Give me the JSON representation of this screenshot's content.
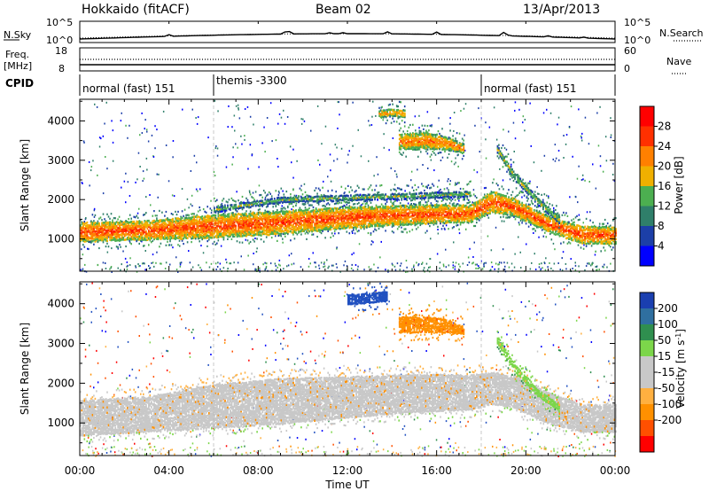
{
  "header": {
    "station": "Hokkaido (fitACF)",
    "beam": "Beam 02",
    "date": "13/Apr/2013"
  },
  "strip_labels": {
    "nsky": "N.Sky",
    "nsearch": "N.Search",
    "freq": "Freq.",
    "freq_unit": "[MHz]",
    "nave": "Nave",
    "cpid": "CPID",
    "nsky_ticks": [
      "10^5",
      "10^0"
    ],
    "nsearch_ticks": [
      "10^5",
      "10^0"
    ],
    "freq_ticks": [
      "18",
      "8"
    ],
    "nave_ticks": [
      "60",
      "0"
    ]
  },
  "cpid_segments": [
    {
      "start_hour": 0,
      "label": "normal (fast) 151"
    },
    {
      "start_hour": 6,
      "label": "themis -3300"
    },
    {
      "start_hour": 18,
      "label": "normal (fast) 151"
    }
  ],
  "colors": {
    "power_scale": [
      "#0000ff",
      "#1c3fa8",
      "#2f7f6a",
      "#4caf50",
      "#f0b000",
      "#ff8000",
      "#ff3000",
      "#ff0000"
    ],
    "velocity_scale": [
      "#ff0000",
      "#ff5000",
      "#ff9000",
      "#ffb040",
      "#c8c8c8",
      "#c8c8c8",
      "#7cd64a",
      "#2f8f4f",
      "#2050c0",
      "#0000ff"
    ],
    "ground_scatter": "#c4c4c4"
  },
  "chart_data": [
    {
      "type": "heatmap",
      "panel": "power",
      "ylabel": "Slant Range [km]",
      "xlim": [
        0,
        24
      ],
      "ylim": [
        180,
        4550
      ],
      "yticks": [
        1000,
        2000,
        3000,
        4000
      ],
      "colorbar": {
        "label": "Power [dB]",
        "ticks": [
          4,
          8,
          12,
          16,
          20,
          24,
          28
        ],
        "range": [
          0,
          32
        ]
      },
      "features": [
        {
          "name": "main-echo-band",
          "hours": [
            0,
            3,
            6,
            9,
            12,
            15,
            17.5,
            18.5,
            19.5,
            21,
            22.5,
            24
          ],
          "range_low": [
            950,
            1000,
            1050,
            1150,
            1300,
            1400,
            1450,
            1700,
            1600,
            1200,
            900,
            900
          ],
          "range_high": [
            1450,
            1500,
            1650,
            1750,
            1850,
            1900,
            1900,
            2250,
            2050,
            1600,
            1350,
            1350
          ],
          "power_db": 26
        },
        {
          "name": "upper-band",
          "hours": [
            6,
            9,
            12,
            15,
            17.5
          ],
          "range_low": [
            1700,
            1950,
            2000,
            2050,
            2100
          ],
          "range_high": [
            1850,
            2100,
            2150,
            2200,
            2250
          ],
          "power_db": 16
        },
        {
          "name": "high-range-patch",
          "hours": [
            14.3,
            15.5,
            16.3,
            17.2
          ],
          "range_low": [
            3300,
            3300,
            3300,
            3200
          ],
          "range_high": [
            3700,
            3750,
            3650,
            3450
          ],
          "power_db": 24
        },
        {
          "name": "top-patch",
          "hours": [
            13.4,
            14.0,
            14.6
          ],
          "range_low": [
            4100,
            4150,
            4100
          ],
          "range_high": [
            4300,
            4350,
            4300
          ],
          "power_db": 22
        },
        {
          "name": "descending-streak",
          "hours": [
            18.7,
            19.5,
            20.5,
            21.5
          ],
          "range_low": [
            3200,
            2500,
            1900,
            1400
          ],
          "range_high": [
            3400,
            2700,
            2100,
            1600
          ],
          "power_db": 18
        }
      ]
    },
    {
      "type": "heatmap",
      "panel": "velocity",
      "xlabel": "Time UT",
      "ylabel": "Slant Range [km]",
      "xlim": [
        0,
        24
      ],
      "ylim": [
        180,
        4550
      ],
      "xticks": [
        "00:00",
        "04:00",
        "08:00",
        "12:00",
        "16:00",
        "20:00",
        "00:00"
      ],
      "yticks": [
        1000,
        2000,
        3000,
        4000
      ],
      "colorbar": {
        "label": "Velocity [m s^-1]",
        "ticks": [
          200,
          100,
          50,
          15,
          -15,
          -50,
          -100,
          -200
        ]
      },
      "features": [
        {
          "name": "ground-scatter-band",
          "hours": [
            0,
            3,
            6,
            9,
            12,
            15,
            17.5,
            18.5,
            19.5,
            21,
            22.5,
            24
          ],
          "range_low": [
            700,
            800,
            900,
            1000,
            1150,
            1300,
            1350,
            1500,
            1400,
            1000,
            800,
            800
          ],
          "range_high": [
            1600,
            1700,
            2000,
            2150,
            2200,
            2250,
            2250,
            2300,
            2200,
            1800,
            1500,
            1500
          ],
          "velocity": 0
        },
        {
          "name": "negative-patch",
          "hours": [
            14.3,
            15.5,
            16.3,
            17.2
          ],
          "range_low": [
            3300,
            3300,
            3300,
            3250
          ],
          "range_high": [
            3700,
            3700,
            3650,
            3450
          ],
          "velocity": -60
        },
        {
          "name": "positive-streak",
          "hours": [
            18.7,
            19.5,
            20.5,
            21.5
          ],
          "range_low": [
            3000,
            2300,
            1700,
            1300
          ],
          "range_high": [
            3200,
            2500,
            1900,
            1500
          ],
          "velocity": 40
        },
        {
          "name": "top-patch",
          "hours": [
            12.0,
            13.0,
            13.8
          ],
          "range_low": [
            4000,
            4050,
            4100
          ],
          "range_high": [
            4250,
            4300,
            4350
          ],
          "velocity": 180
        }
      ]
    }
  ]
}
